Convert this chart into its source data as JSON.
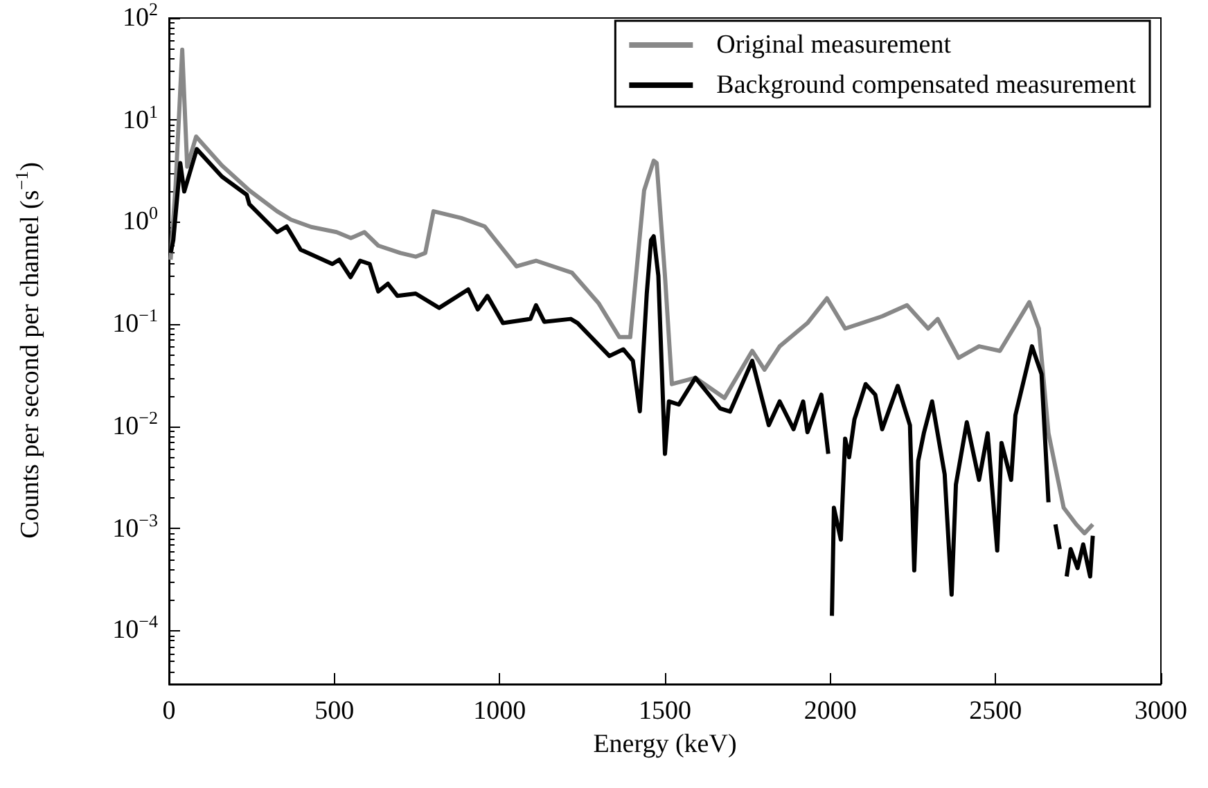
{
  "chart_data": {
    "type": "line",
    "xlabel": "Energy (keV)",
    "ylabel": "Counts per second per channel (s$^{−1}$)",
    "log": "y",
    "grid": false,
    "legend": "top right",
    "marker": "none",
    "xlim": [
      0,
      3000
    ],
    "xticks": [
      0,
      500,
      1000,
      1500,
      2000,
      2500,
      3000
    ],
    "ylim": [
      3e-05,
      100
    ],
    "yticks": [
      {
        "value": 0.0001,
        "label": "10$^{−4}$"
      },
      {
        "value": 0.001,
        "label": "10$^{−3}$"
      },
      {
        "value": 0.01,
        "label": "10$^{−2}$"
      },
      {
        "value": 0.1,
        "label": "10$^{−1}$"
      },
      {
        "value": 1,
        "label": "10$^{0}$"
      },
      {
        "value": 10,
        "label": "10$^{1}$"
      },
      {
        "value": 100,
        "label": "10$^{2}$"
      }
    ],
    "series": [
      {
        "name": "Original measurement",
        "color": "#888888",
        "x": [
          5,
          20,
          40,
          55,
          82,
          160,
          243,
          327,
          369,
          430,
          507,
          550,
          591,
          633,
          700,
          746,
          775,
          800,
          884,
          955,
          1051,
          1110,
          1219,
          1300,
          1362,
          1395,
          1437,
          1466,
          1475,
          1500,
          1521,
          1592,
          1680,
          1764,
          1801,
          1847,
          1931,
          1990,
          2045,
          2157,
          2232,
          2296,
          2325,
          2388,
          2450,
          2513,
          2602,
          2631,
          2660,
          2706,
          2744,
          2769,
          2794
        ],
        "values": [
          0.43,
          2.3,
          49,
          3.5,
          6.9,
          3.6,
          2.05,
          1.28,
          1.06,
          0.9,
          0.8,
          0.7,
          0.8,
          0.59,
          0.5,
          0.46,
          0.5,
          1.28,
          1.1,
          0.91,
          0.37,
          0.42,
          0.32,
          0.16,
          0.075,
          0.075,
          2.05,
          4.0,
          3.8,
          0.3,
          0.026,
          0.03,
          0.019,
          0.055,
          0.036,
          0.061,
          0.103,
          0.18,
          0.091,
          0.12,
          0.154,
          0.091,
          0.113,
          0.047,
          0.061,
          0.055,
          0.165,
          0.091,
          0.0086,
          0.0016,
          0.0011,
          0.0009,
          0.0011
        ]
      },
      {
        "name": "Background compensated measurement",
        "color": "#000000",
        "x": [
          5,
          13,
          34,
          46,
          84,
          160,
          235,
          243,
          327,
          356,
          398,
          494,
          515,
          549,
          578,
          607,
          633,
          662,
          691,
          746,
          817,
          905,
          934,
          963,
          1010,
          1093,
          1110,
          1135,
          1215,
          1236,
          1332,
          1374,
          1403,
          1424,
          1445,
          1458,
          1466,
          1480,
          1500,
          1512,
          1542,
          1592,
          1667,
          1697,
          1764,
          1814,
          1847,
          1889,
          1918,
          1931,
          1973,
          1994,
          2000,
          2005,
          2011,
          2032,
          2045,
          2057,
          2073,
          2107,
          2136,
          2157,
          2204,
          2241,
          2254,
          2266,
          2283,
          2308,
          2346,
          2367,
          2380,
          2413,
          2450,
          2476,
          2505,
          2518,
          2547,
          2560,
          2610,
          2639,
          2660,
          2664,
          2681,
          2694,
          2702,
          2715,
          2727,
          2748,
          2765,
          2786,
          2794
        ],
        "values": [
          0.5,
          0.67,
          3.8,
          2.0,
          5.2,
          2.8,
          1.86,
          1.5,
          0.8,
          0.91,
          0.54,
          0.39,
          0.43,
          0.29,
          0.42,
          0.39,
          0.21,
          0.25,
          0.19,
          0.2,
          0.145,
          0.22,
          0.14,
          0.19,
          0.103,
          0.113,
          0.154,
          0.106,
          0.113,
          0.103,
          0.049,
          0.057,
          0.044,
          0.0141,
          0.2,
          0.67,
          0.73,
          0.3,
          0.0054,
          0.0176,
          0.0164,
          0.03,
          0.015,
          0.014,
          0.044,
          0.0103,
          0.0176,
          0.0094,
          0.0176,
          0.0088,
          0.0205,
          0.0054,
          null,
          0.00014,
          0.0016,
          0.00078,
          0.0076,
          0.005,
          0.0117,
          0.026,
          0.0205,
          0.0094,
          0.025,
          0.0103,
          0.00039,
          0.0046,
          0.0086,
          0.0176,
          0.0034,
          0.000226,
          0.0027,
          0.011,
          0.003,
          0.0086,
          0.00061,
          0.0069,
          0.003,
          0.0129,
          0.061,
          0.0326,
          0.00181,
          null,
          0.0011,
          0.00063,
          null,
          0.00034,
          0.00063,
          0.00041,
          0.0007,
          0.00034,
          0.00085
        ]
      }
    ]
  }
}
